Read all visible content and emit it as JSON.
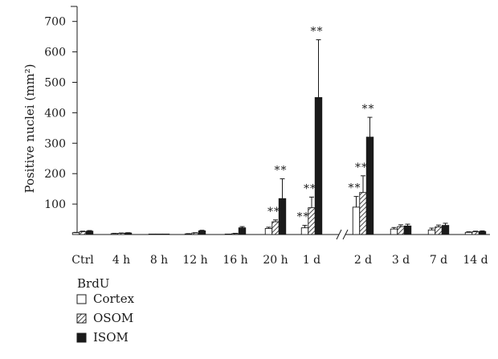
{
  "chart_data": {
    "type": "bar",
    "ylabel": "Positive nuclei (mm²)",
    "ylim": [
      0,
      750
    ],
    "yticks": [
      100,
      200,
      300,
      400,
      500,
      600,
      700
    ],
    "categories": [
      "Ctrl",
      "4 h",
      "8 h",
      "12 h",
      "16 h",
      "20 h",
      "1 d",
      "2 d",
      "3 d",
      "7 d",
      "14 d"
    ],
    "axis_break_between": [
      "1 d",
      "2 d"
    ],
    "grid": false,
    "legend": {
      "title": "BrdU",
      "placement": "bottom-left"
    },
    "series": [
      {
        "name": "Cortex",
        "pattern": "open",
        "values": [
          6,
          3,
          1,
          2,
          1,
          20,
          22,
          90,
          18,
          15,
          7
        ],
        "errors": [
          1,
          1,
          0,
          1,
          0,
          4,
          8,
          35,
          5,
          6,
          2
        ],
        "significance": [
          "",
          "",
          "",
          "",
          "",
          "",
          "**",
          "**",
          "",
          "",
          ""
        ]
      },
      {
        "name": "OSOM",
        "pattern": "hatched",
        "values": [
          9,
          4,
          1,
          5,
          3,
          42,
          88,
          138,
          26,
          25,
          9
        ],
        "errors": [
          2,
          1,
          0,
          1,
          1,
          6,
          35,
          55,
          6,
          6,
          2
        ],
        "significance": [
          "",
          "",
          "",
          "",
          "",
          "**",
          "**",
          "**",
          "",
          "",
          ""
        ]
      },
      {
        "name": "ISOM",
        "pattern": "solid",
        "values": [
          11,
          5,
          1,
          12,
          22,
          118,
          450,
          320,
          28,
          30,
          10
        ],
        "errors": [
          2,
          1,
          0,
          2,
          4,
          65,
          190,
          65,
          6,
          7,
          2
        ],
        "significance": [
          "",
          "",
          "",
          "",
          "",
          "**",
          "**",
          "**",
          "",
          "",
          ""
        ]
      }
    ]
  }
}
